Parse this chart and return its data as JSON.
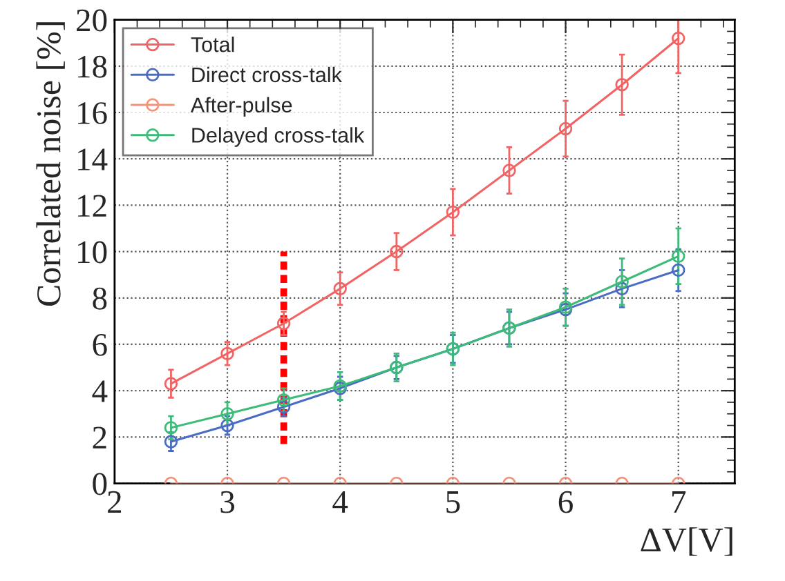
{
  "chart_data": {
    "type": "line",
    "xlabel": "ΔV[V]",
    "ylabel": "Correlated noise [%]",
    "x": [
      2.5,
      3,
      3.5,
      4,
      4.5,
      5,
      5.5,
      6,
      6.5,
      7
    ],
    "series": [
      {
        "name": "Total",
        "color": "#f26464",
        "values": [
          4.3,
          5.6,
          6.9,
          8.4,
          10.0,
          11.7,
          13.5,
          15.3,
          17.2,
          19.2
        ],
        "errors": [
          0.6,
          0.5,
          0.5,
          0.7,
          0.8,
          1.0,
          1.0,
          1.2,
          1.3,
          1.5
        ]
      },
      {
        "name": "Direct cross-talk",
        "color": "#4a6cc2",
        "values": [
          1.8,
          2.5,
          3.3,
          4.1,
          5.0,
          5.8,
          6.7,
          7.5,
          8.4,
          9.2
        ],
        "errors": [
          0.4,
          0.4,
          0.4,
          0.5,
          0.5,
          0.6,
          0.7,
          0.7,
          0.8,
          0.9
        ]
      },
      {
        "name": "After-pulse",
        "color": "#f7937a",
        "values": [
          0,
          0,
          0,
          0,
          0,
          0,
          0,
          0,
          0,
          0
        ]
      },
      {
        "name": "Delayed cross-talk",
        "color": "#3dbb78",
        "values": [
          2.4,
          3.0,
          3.6,
          4.2,
          5.0,
          5.8,
          6.7,
          7.6,
          8.7,
          9.8
        ],
        "errors": [
          0.5,
          0.5,
          0.5,
          0.6,
          0.6,
          0.7,
          0.8,
          0.8,
          1.0,
          1.2
        ]
      },
      {
        "type": "line",
        "x": [
          3.5,
          3.5
        ],
        "values": [
          1.7,
          10
        ],
        "color": "#ff0000",
        "line_style": "dotted",
        "marker": "none"
      }
    ],
    "xlim": [
      2,
      7.5
    ],
    "xticks": [
      2,
      3,
      4,
      5,
      6,
      7
    ],
    "ylim": [
      0,
      20
    ],
    "yticks": [
      0,
      2,
      4,
      6,
      8,
      10,
      12,
      14,
      16,
      18,
      20
    ],
    "grid": true,
    "legend": "top left",
    "marker": "circle",
    "line_style": "solid"
  }
}
